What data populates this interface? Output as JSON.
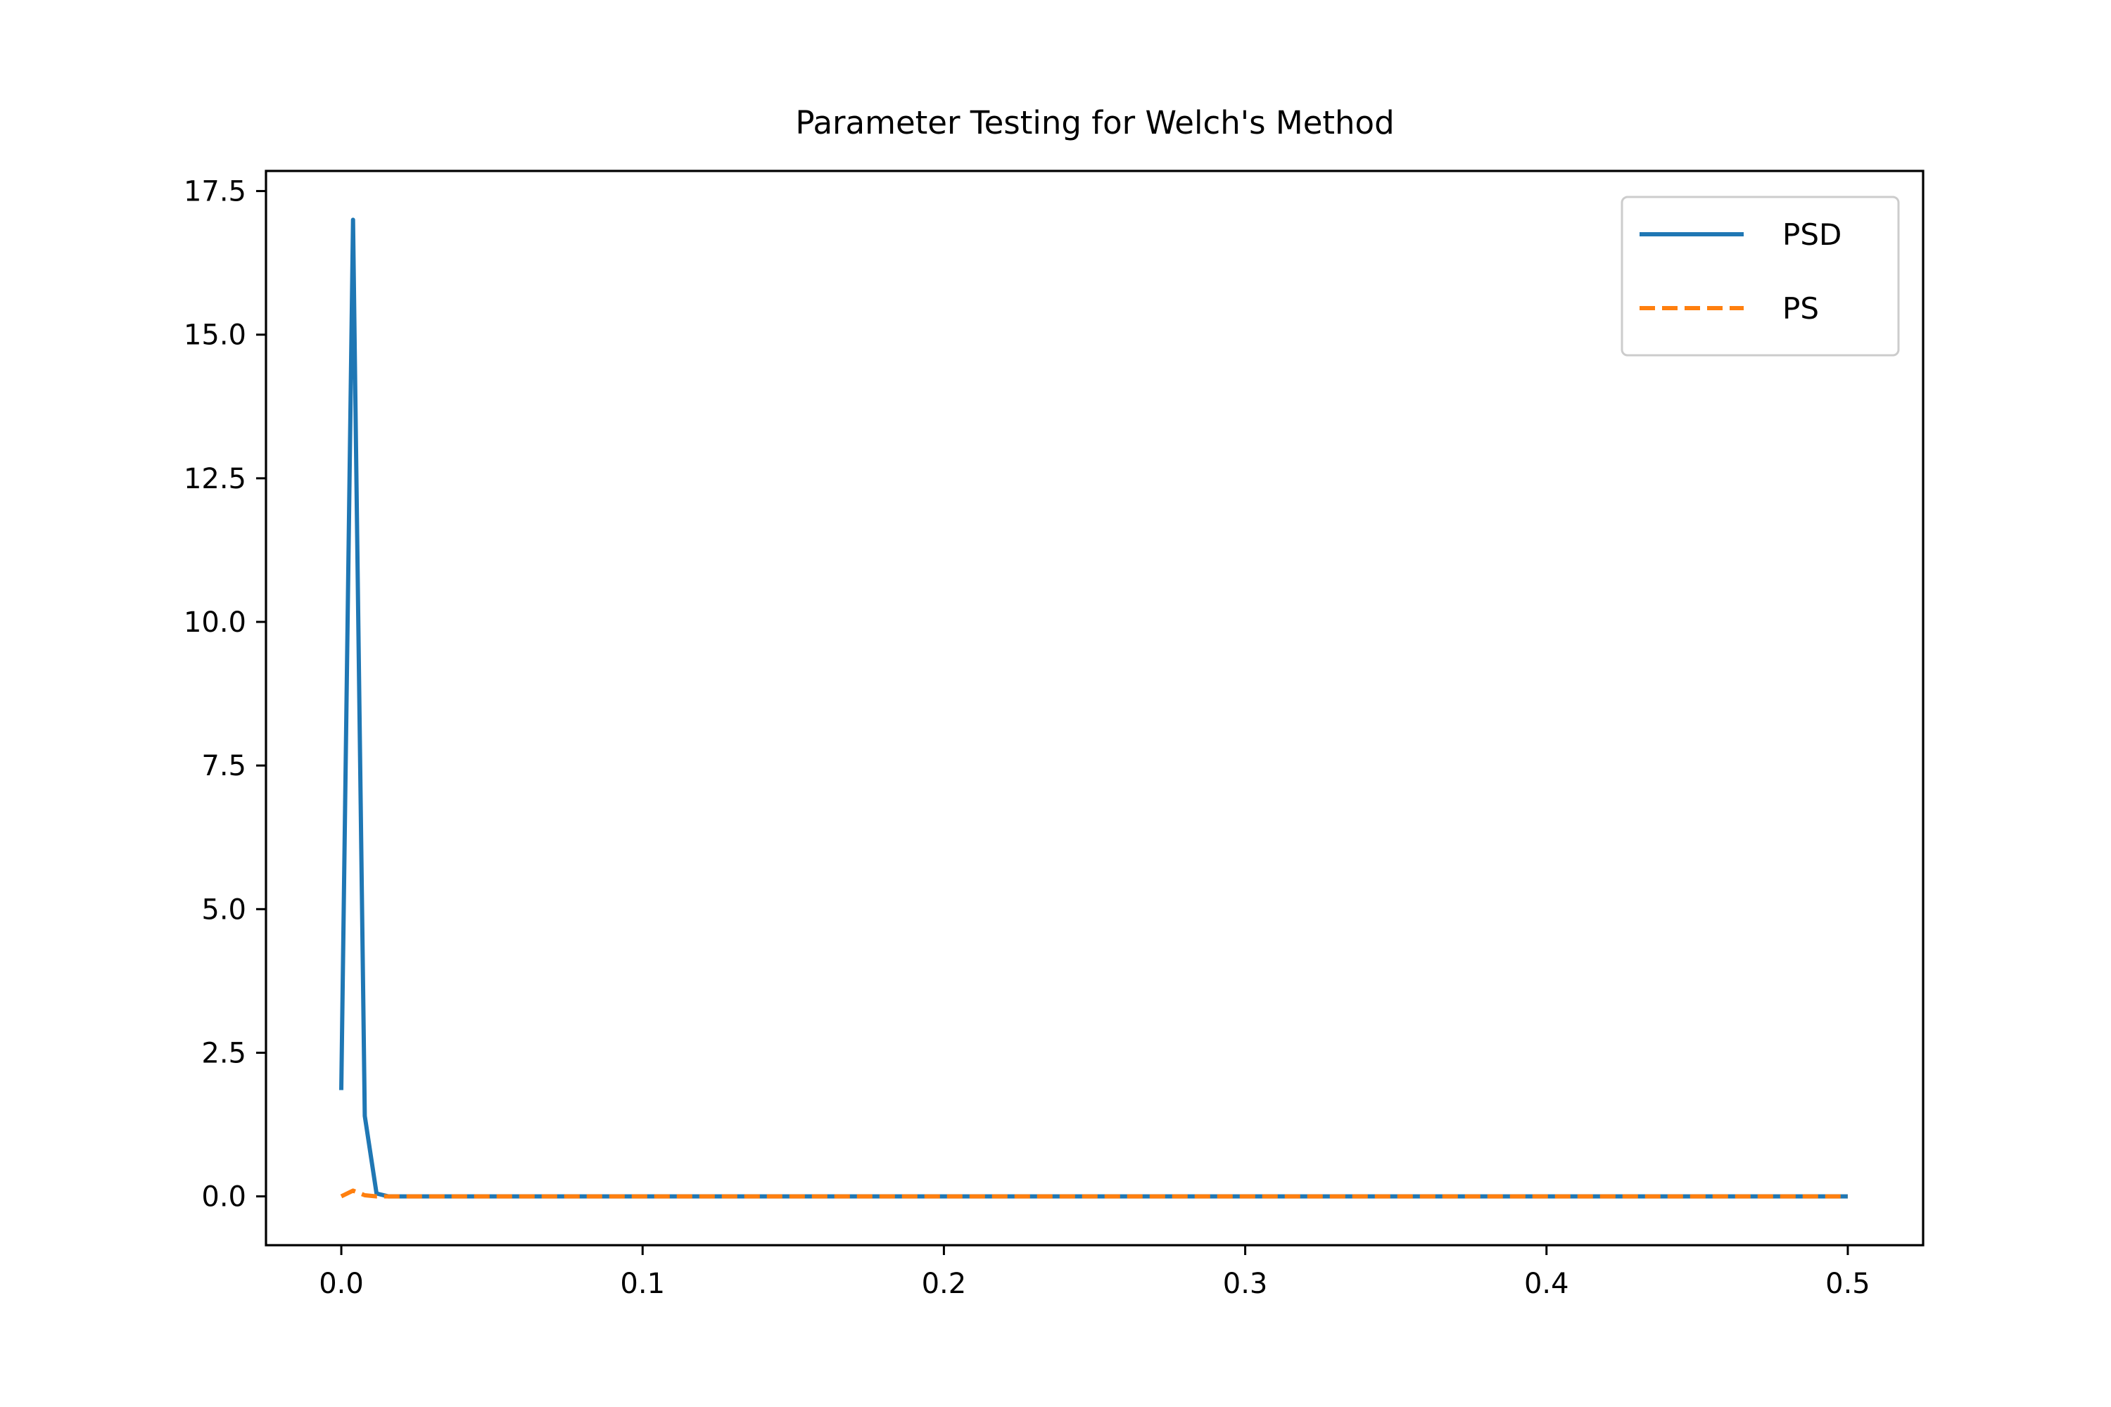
{
  "chart_data": {
    "type": "line",
    "title": "Parameter Testing for Welch's Method",
    "xlabel": "",
    "ylabel": "",
    "xlim": [
      -0.025,
      0.525
    ],
    "ylim": [
      -0.85,
      17.85
    ],
    "xticks": [
      "0.0",
      "0.1",
      "0.2",
      "0.3",
      "0.4",
      "0.5"
    ],
    "yticks": [
      "0.0",
      "2.5",
      "5.0",
      "7.5",
      "10.0",
      "12.5",
      "15.0",
      "17.5"
    ],
    "legend_position": "upper right",
    "grid": false,
    "series": [
      {
        "name": "PSD",
        "color": "#1f77b4",
        "style": "solid",
        "x": [
          0.0,
          0.0039,
          0.0078,
          0.0117,
          0.0156,
          0.5
        ],
        "y": [
          1.85,
          17.0,
          1.4,
          0.05,
          0.0,
          0.0
        ]
      },
      {
        "name": "PS",
        "color": "#ff7f0e",
        "style": "dashed",
        "x": [
          0.0,
          0.0039,
          0.0078,
          0.0117,
          0.0156,
          0.5
        ],
        "y": [
          0.0,
          0.1,
          0.02,
          0.0,
          0.0,
          0.0
        ]
      }
    ]
  }
}
